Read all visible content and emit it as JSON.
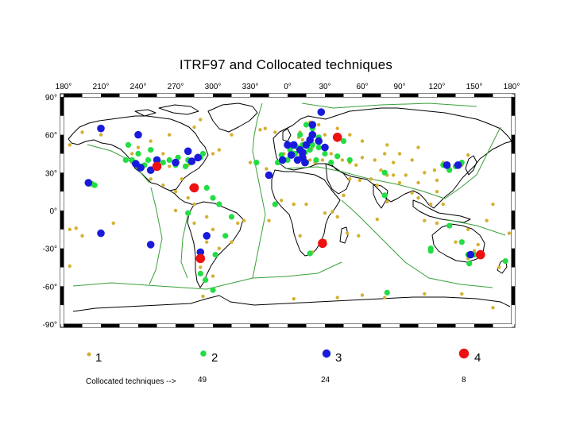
{
  "title": "ITRF97 and Collocated techniques",
  "axes": {
    "lon_ticks": [
      "180°",
      "210°",
      "240°",
      "270°",
      "300°",
      "330°",
      "0°",
      "30°",
      "60°",
      "90°",
      "120°",
      "150°",
      "180°"
    ],
    "lat_ticks": [
      "90°",
      "60°",
      "30°",
      "0°",
      "-30°",
      "-60°",
      "-90°"
    ],
    "lon_range": [
      180,
      540
    ],
    "lat_range": [
      -90,
      90
    ]
  },
  "colors": {
    "type1": "#d4b030",
    "type2": "#22dd44",
    "type3": "#1a1add",
    "type4": "#ee1111",
    "plate_boundaries": "#3aa03a",
    "coastline": "#000000"
  },
  "legend": [
    {
      "label": "1",
      "color": "#d4b030",
      "size": "small"
    },
    {
      "label": "2",
      "color": "#22dd44",
      "size": "medium"
    },
    {
      "label": "3",
      "color": "#1a1add",
      "size": "large"
    },
    {
      "label": "4",
      "color": "#ee1111",
      "size": "xlarge"
    }
  ],
  "footer": {
    "label": "Collocated techniques -->",
    "counts": [
      "49",
      "24",
      "8"
    ]
  },
  "chart_data": {
    "type": "scatter",
    "title": "ITRF97 and Collocated techniques",
    "series": [
      {
        "name": "1",
        "points": [
          [
            9,
            58
          ],
          [
            12,
            56
          ],
          [
            15,
            52
          ],
          [
            20,
            50
          ],
          [
            25,
            55
          ],
          [
            30,
            50
          ],
          [
            35,
            45
          ],
          [
            5,
            46
          ],
          [
            -5,
            40
          ],
          [
            -3,
            45
          ],
          [
            10,
            44
          ],
          [
            14,
            42
          ],
          [
            18,
            40
          ],
          [
            22,
            38
          ],
          [
            28,
            40
          ],
          [
            35,
            38
          ],
          [
            40,
            42
          ],
          [
            44,
            40
          ],
          [
            50,
            38
          ],
          [
            55,
            36
          ],
          [
            60,
            42
          ],
          [
            70,
            40
          ],
          [
            78,
            45
          ],
          [
            80,
            52
          ],
          [
            85,
            38
          ],
          [
            90,
            45
          ],
          [
            100,
            40
          ],
          [
            105,
            50
          ],
          [
            110,
            30
          ],
          [
            118,
            32
          ],
          [
            120,
            24
          ],
          [
            125,
            38
          ],
          [
            130,
            34
          ],
          [
            135,
            34
          ],
          [
            140,
            36
          ],
          [
            145,
            44
          ],
          [
            105,
            22
          ],
          [
            100,
            14
          ],
          [
            105,
            10
          ],
          [
            115,
            5
          ],
          [
            120,
            15
          ],
          [
            125,
            5
          ],
          [
            120,
            -10
          ],
          [
            110,
            -8
          ],
          [
            130,
            -12
          ],
          [
            135,
            -25
          ],
          [
            145,
            -15
          ],
          [
            150,
            -32
          ],
          [
            153,
            -27
          ],
          [
            145,
            -38
          ],
          [
            170,
            -45
          ],
          [
            175,
            -40
          ],
          [
            178,
            -18
          ],
          [
            160,
            -8
          ],
          [
            165,
            5
          ],
          [
            78,
            12
          ],
          [
            72,
            20
          ],
          [
            80,
            7
          ],
          [
            72,
            -7
          ],
          [
            57,
            -20
          ],
          [
            48,
            -18
          ],
          [
            40,
            -5
          ],
          [
            36,
            -1
          ],
          [
            30,
            -24
          ],
          [
            20,
            -33
          ],
          [
            10,
            -20
          ],
          [
            15,
            5
          ],
          [
            5,
            5
          ],
          [
            -5,
            8
          ],
          [
            -15,
            28
          ],
          [
            -25,
            38
          ],
          [
            -45,
            60
          ],
          [
            -70,
            72
          ],
          [
            -75,
            66
          ],
          [
            -95,
            60
          ],
          [
            -110,
            55
          ],
          [
            -120,
            50
          ],
          [
            -125,
            45
          ],
          [
            -115,
            35
          ],
          [
            -105,
            40
          ],
          [
            -100,
            45
          ],
          [
            -95,
            35
          ],
          [
            -88,
            38
          ],
          [
            -80,
            36
          ],
          [
            -85,
            25
          ],
          [
            -100,
            20
          ],
          [
            -110,
            25
          ],
          [
            -90,
            15
          ],
          [
            -80,
            10
          ],
          [
            -75,
            5
          ],
          [
            -65,
            -5
          ],
          [
            -75,
            -10
          ],
          [
            -60,
            -15
          ],
          [
            -50,
            -20
          ],
          [
            -45,
            -25
          ],
          [
            -55,
            -30
          ],
          [
            -65,
            -25
          ],
          [
            -70,
            -45
          ],
          [
            -65,
            -55
          ],
          [
            -60,
            -52
          ],
          [
            -40,
            -10
          ],
          [
            -35,
            -8
          ],
          [
            -150,
            60
          ],
          [
            -165,
            62
          ],
          [
            -175,
            52
          ],
          [
            -160,
            20
          ],
          [
            -157,
            21
          ],
          [
            -175,
            -15
          ],
          [
            -170,
            -14
          ],
          [
            -150,
            -18
          ],
          [
            -140,
            -10
          ],
          [
            -110,
            -27
          ],
          [
            -90,
            0
          ],
          [
            -15,
            -8
          ],
          [
            5,
            -70
          ],
          [
            40,
            -69
          ],
          [
            60,
            -67
          ],
          [
            78,
            -69
          ],
          [
            110,
            -66
          ],
          [
            140,
            -66
          ],
          [
            165,
            -77
          ],
          [
            -60,
            -63
          ],
          [
            -68,
            -68
          ],
          [
            -175,
            -44
          ],
          [
            -165,
            -20
          ],
          [
            85,
            28
          ],
          [
            60,
            55
          ],
          [
            50,
            60
          ],
          [
            45,
            55
          ],
          [
            30,
            60
          ],
          [
            40,
            65
          ],
          [
            25,
            68
          ],
          [
            18,
            70
          ],
          [
            10,
            62
          ],
          [
            -22,
            64
          ],
          [
            -18,
            65
          ],
          [
            -10,
            62
          ],
          [
            -30,
            38
          ],
          [
            -17,
            33
          ],
          [
            -60,
            45
          ],
          [
            -55,
            48
          ],
          [
            -65,
            18
          ],
          [
            -78,
            18
          ],
          [
            30,
            -2
          ],
          [
            45,
            12
          ],
          [
            50,
            25
          ],
          [
            58,
            24
          ],
          [
            67,
            25
          ],
          [
            75,
            32
          ],
          [
            80,
            28
          ],
          [
            90,
            22
          ],
          [
            95,
            28
          ]
        ]
      },
      {
        "name": "2",
        "points": [
          [
            -122,
            38
          ],
          [
            -118,
            35
          ],
          [
            -115,
            36
          ],
          [
            -112,
            40
          ],
          [
            -105,
            40
          ],
          [
            -100,
            38
          ],
          [
            -95,
            40
          ],
          [
            -90,
            36
          ],
          [
            -88,
            42
          ],
          [
            -80,
            40
          ],
          [
            -78,
            38
          ],
          [
            -82,
            35
          ],
          [
            -70,
            42
          ],
          [
            -110,
            48
          ],
          [
            -120,
            45
          ],
          [
            -125,
            40
          ],
          [
            -130,
            40
          ],
          [
            -128,
            52
          ],
          [
            -68,
            45
          ],
          [
            -65,
            18
          ],
          [
            -60,
            10
          ],
          [
            -55,
            5
          ],
          [
            -45,
            -5
          ],
          [
            -80,
            -2
          ],
          [
            -70,
            -33
          ],
          [
            -58,
            -35
          ],
          [
            -70,
            -50
          ],
          [
            -66,
            -55
          ],
          [
            -155,
            20
          ],
          [
            -157,
            21
          ],
          [
            -150,
            -18
          ],
          [
            5,
            52
          ],
          [
            8,
            50
          ],
          [
            10,
            48
          ],
          [
            12,
            52
          ],
          [
            14,
            46
          ],
          [
            18,
            48
          ],
          [
            20,
            52
          ],
          [
            6,
            45
          ],
          [
            2,
            48
          ],
          [
            -3,
            40
          ],
          [
            -8,
            38
          ],
          [
            -5,
            44
          ],
          [
            0,
            40
          ],
          [
            15,
            38
          ],
          [
            23,
            40
          ],
          [
            30,
            45
          ],
          [
            35,
            38
          ],
          [
            40,
            43
          ],
          [
            25,
            58
          ],
          [
            20,
            65
          ],
          [
            15,
            68
          ],
          [
            10,
            60
          ],
          [
            25,
            50
          ],
          [
            45,
            55
          ],
          [
            50,
            40
          ],
          [
            28,
            -26
          ],
          [
            18,
            -34
          ],
          [
            -10,
            5
          ],
          [
            115,
            -30
          ],
          [
            130,
            -12
          ],
          [
            150,
            -35
          ],
          [
            145,
            -35
          ],
          [
            140,
            -25
          ],
          [
            175,
            -40
          ],
          [
            135,
            35
          ],
          [
            140,
            38
          ],
          [
            130,
            32
          ],
          [
            125,
            36
          ],
          [
            78,
            12
          ],
          [
            78,
            30
          ],
          [
            115,
            -32
          ],
          [
            -15,
            28
          ],
          [
            -25,
            38
          ],
          [
            -50,
            -20
          ],
          [
            80,
            -65
          ],
          [
            -60,
            -63
          ],
          [
            146,
            -42
          ]
        ]
      },
      {
        "name": "3",
        "points": [
          [
            -150,
            65
          ],
          [
            -160,
            22
          ],
          [
            -150,
            -18
          ],
          [
            -110,
            -27
          ],
          [
            -122,
            37
          ],
          [
            -118,
            34
          ],
          [
            -110,
            32
          ],
          [
            -105,
            40
          ],
          [
            -90,
            38
          ],
          [
            -77,
            39
          ],
          [
            -72,
            42
          ],
          [
            -80,
            47
          ],
          [
            -120,
            60
          ],
          [
            -70,
            -33
          ],
          [
            0,
            52
          ],
          [
            5,
            52
          ],
          [
            10,
            48
          ],
          [
            15,
            52
          ],
          [
            12,
            46
          ],
          [
            18,
            56
          ],
          [
            20,
            60
          ],
          [
            25,
            55
          ],
          [
            30,
            50
          ],
          [
            3,
            44
          ],
          [
            -4,
            40
          ],
          [
            8,
            40
          ],
          [
            12,
            42
          ],
          [
            27,
            78
          ],
          [
            20,
            68
          ],
          [
            28,
            -26
          ],
          [
            147,
            -35
          ],
          [
            137,
            36
          ],
          [
            128,
            36
          ],
          [
            -65,
            -20
          ],
          [
            -15,
            28
          ],
          [
            14,
            38
          ]
        ]
      },
      {
        "name": "4",
        "points": [
          [
            40,
            58
          ],
          [
            -105,
            35
          ],
          [
            -75,
            18
          ],
          [
            -70,
            -38
          ],
          [
            28,
            -26
          ],
          [
            155,
            -35
          ]
        ]
      }
    ]
  }
}
